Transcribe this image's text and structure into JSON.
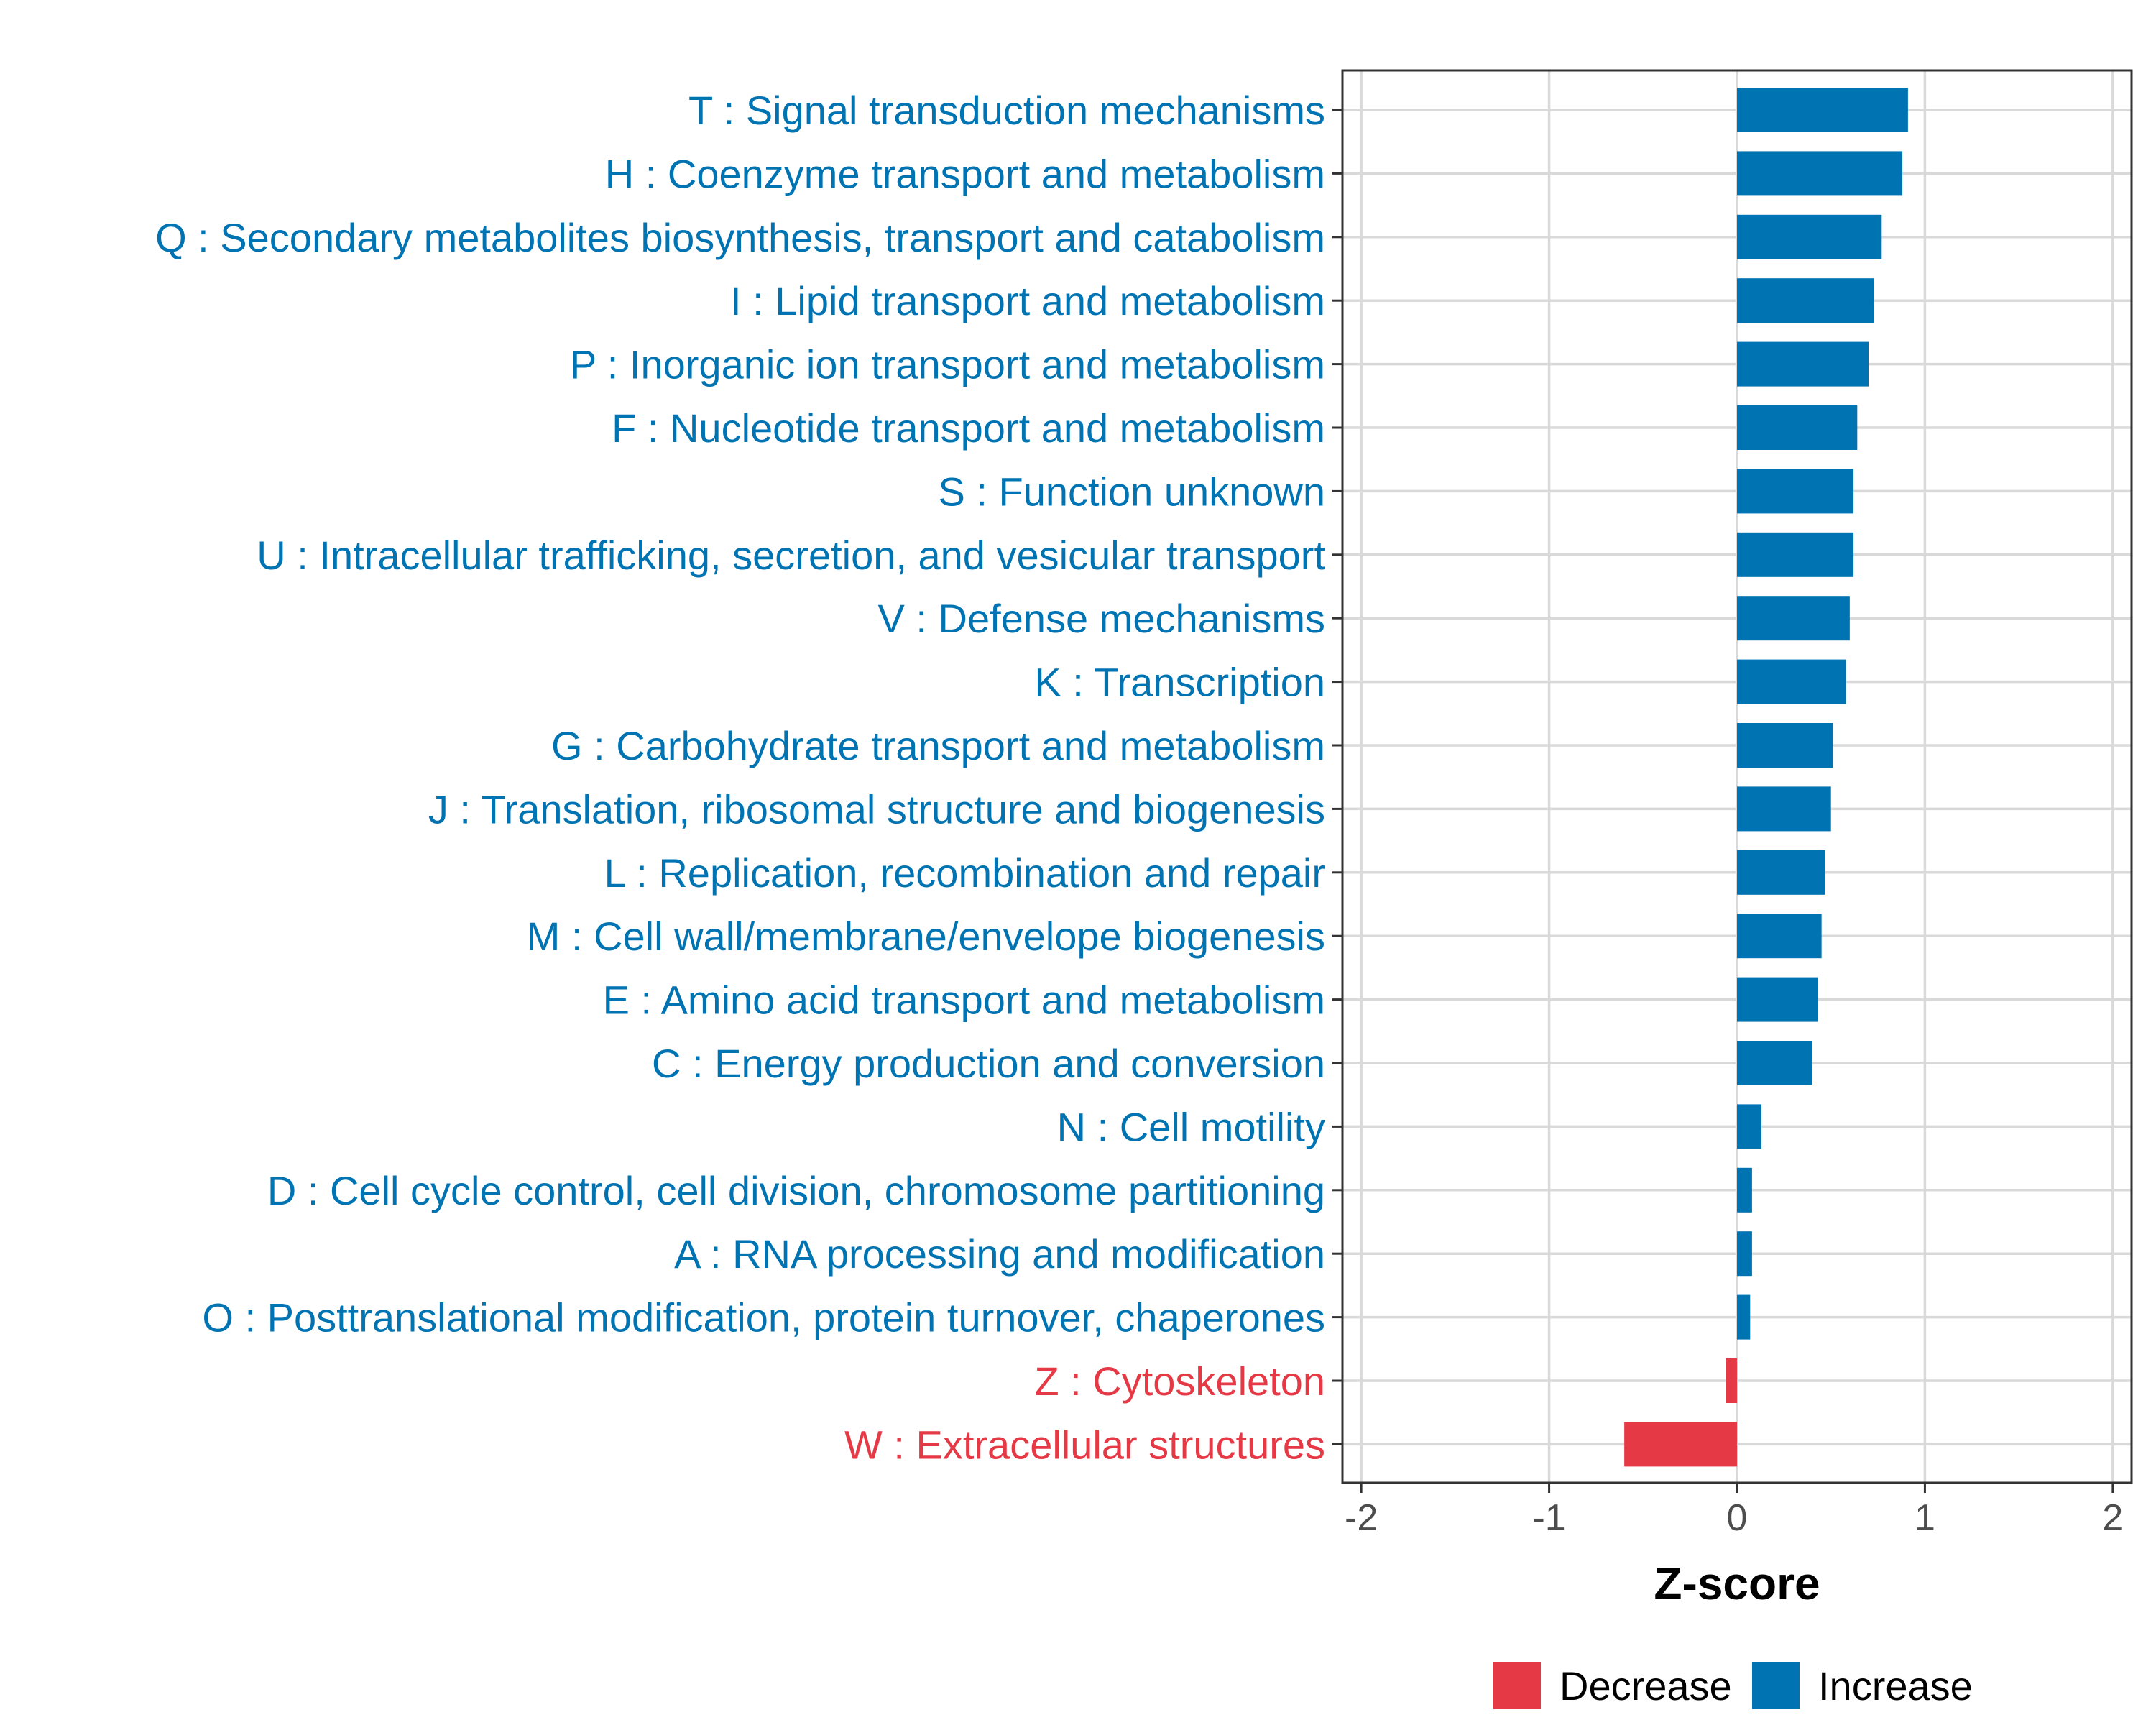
{
  "chart_data": {
    "type": "bar",
    "orientation": "horizontal",
    "title": "",
    "xlabel": "Z-score",
    "ylabel": "",
    "xlim": [
      -2.1,
      2.1
    ],
    "xticks": [
      -2,
      -1,
      0,
      1,
      2
    ],
    "xtick_labels": [
      "-2",
      "-1",
      "0",
      "1",
      "2"
    ],
    "grid": true,
    "colors": {
      "Increase": "#0073b3",
      "Decrease": "#e63946"
    },
    "categories": [
      "T : Signal transduction mechanisms",
      "H : Coenzyme transport and metabolism",
      "Q : Secondary metabolites biosynthesis, transport and catabolism",
      "I : Lipid transport and metabolism",
      "P : Inorganic ion transport and metabolism",
      "F : Nucleotide transport and metabolism",
      "S : Function unknown",
      "U : Intracellular trafficking, secretion, and vesicular transport",
      "V : Defense mechanisms",
      "K : Transcription",
      "G : Carbohydrate transport and metabolism",
      "J : Translation, ribosomal structure and biogenesis",
      "L : Replication, recombination and repair",
      "M : Cell wall/membrane/envelope biogenesis",
      "E : Amino acid transport and metabolism",
      "C : Energy production and conversion",
      "N : Cell motility",
      "D : Cell cycle control, cell division, chromosome partitioning",
      "A : RNA processing and modification",
      "O : Posttranslational modification, protein turnover, chaperones",
      "Z : Cytoskeleton",
      "W : Extracellular structures"
    ],
    "values": [
      0.91,
      0.88,
      0.77,
      0.73,
      0.7,
      0.64,
      0.62,
      0.62,
      0.6,
      0.58,
      0.51,
      0.5,
      0.47,
      0.45,
      0.43,
      0.4,
      0.13,
      0.08,
      0.08,
      0.07,
      -0.06,
      -0.6
    ],
    "groups": [
      "Increase",
      "Increase",
      "Increase",
      "Increase",
      "Increase",
      "Increase",
      "Increase",
      "Increase",
      "Increase",
      "Increase",
      "Increase",
      "Increase",
      "Increase",
      "Increase",
      "Increase",
      "Increase",
      "Increase",
      "Increase",
      "Increase",
      "Increase",
      "Decrease",
      "Decrease"
    ],
    "legend": {
      "position": "bottom",
      "entries": [
        {
          "name": "Decrease",
          "color": "#e63946"
        },
        {
          "name": "Increase",
          "color": "#0073b3"
        }
      ]
    }
  }
}
